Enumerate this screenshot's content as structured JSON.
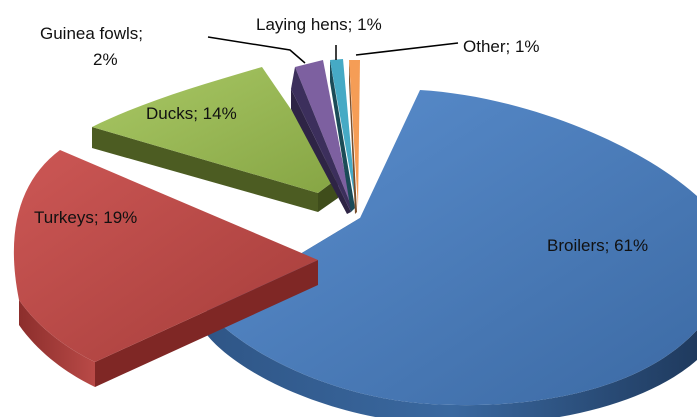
{
  "chart_data": {
    "type": "pie",
    "style": "exploded-3d",
    "slices": [
      {
        "category": "Broilers",
        "value": 61,
        "label": "Broilers; 61%",
        "color": "#4a7ebb"
      },
      {
        "category": "Turkeys",
        "value": 19,
        "label": "Turkeys; 19%",
        "color": "#be4b48"
      },
      {
        "category": "Ducks",
        "value": 14,
        "label": "Ducks; 14%",
        "color": "#98b954"
      },
      {
        "category": "Guinea fowls",
        "value": 2,
        "label_lines": [
          "Guinea fowls;",
          "2%"
        ],
        "color": "#7d60a0"
      },
      {
        "category": "Laying hens",
        "value": 1,
        "label": "Laying hens; 1%",
        "color": "#46aac5"
      },
      {
        "category": "Other",
        "value": 1,
        "label": "Other; 1%",
        "color": "#f59d56"
      }
    ],
    "legend": "none",
    "data_labels": "category-and-percent"
  }
}
